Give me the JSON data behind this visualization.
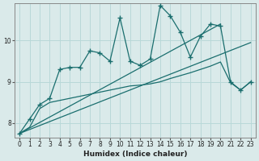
{
  "xlabel": "Humidex (Indice chaleur)",
  "background_color": "#daeaea",
  "grid_color": "#b8d8d8",
  "line_color": "#1a6e6e",
  "xlim": [
    -0.5,
    23.5
  ],
  "ylim": [
    7.65,
    10.9
  ],
  "yticks": [
    8,
    9,
    10
  ],
  "xticks": [
    0,
    1,
    2,
    3,
    4,
    5,
    6,
    7,
    8,
    9,
    10,
    11,
    12,
    13,
    14,
    15,
    16,
    17,
    18,
    19,
    20,
    21,
    22,
    23
  ],
  "series1_x": [
    0,
    1,
    2,
    3,
    4,
    5,
    6,
    7,
    8,
    9,
    10,
    11,
    12,
    13,
    14,
    15,
    16,
    17,
    18,
    19,
    20,
    21,
    22,
    23
  ],
  "series1_y": [
    7.75,
    8.1,
    8.45,
    8.6,
    9.3,
    9.35,
    9.35,
    9.75,
    9.7,
    9.5,
    10.55,
    9.5,
    9.4,
    9.55,
    10.85,
    10.6,
    10.2,
    9.6,
    10.1,
    10.4,
    10.35,
    9.0,
    8.8,
    9.0
  ],
  "series2_x": [
    0,
    1,
    2,
    3,
    4,
    5,
    6,
    7,
    8,
    9,
    10,
    11,
    12,
    13,
    14,
    15,
    16,
    17,
    18,
    19,
    20,
    21,
    22,
    23
  ],
  "series2_y": [
    7.75,
    7.9,
    8.35,
    8.5,
    8.55,
    8.6,
    8.65,
    8.7,
    8.75,
    8.8,
    8.85,
    8.9,
    8.92,
    8.95,
    9.0,
    9.08,
    9.15,
    9.22,
    9.3,
    9.38,
    9.48,
    8.98,
    8.8,
    9.0
  ],
  "series3_x": [
    0,
    20
  ],
  "series3_y": [
    7.75,
    10.4
  ],
  "series4_x": [
    0,
    23
  ],
  "series4_y": [
    7.75,
    9.95
  ]
}
